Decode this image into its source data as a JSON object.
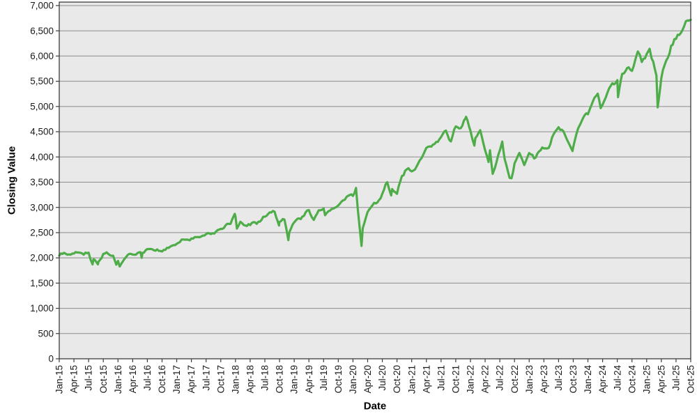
{
  "chart_data": {
    "type": "line",
    "title": "",
    "xlabel": "Date",
    "ylabel": "Closing Value",
    "legend": "none",
    "grid": "horizontal",
    "ylim": [
      0,
      7000
    ],
    "y_ticks": [
      0,
      500,
      1000,
      1500,
      2000,
      2500,
      3000,
      3500,
      4000,
      4500,
      5000,
      5500,
      6000,
      6500,
      7000
    ],
    "x_tick_labels": [
      "Jan-15",
      "Apr-15",
      "Jul-15",
      "Oct-15",
      "Jan-16",
      "Apr-16",
      "Jul-16",
      "Oct-16",
      "Jan-17",
      "Apr-17",
      "Jul-17",
      "Oct-17",
      "Jan-18",
      "Apr-18",
      "Jul-18",
      "Oct-18",
      "Jan-19",
      "Apr-19",
      "Jul-19",
      "Oct-19",
      "Jan-20",
      "Apr-20",
      "Jul-20",
      "Oct-20",
      "Jan-21",
      "Apr-21",
      "Jul-21",
      "Oct-21",
      "Jan-22",
      "Apr-22",
      "Jul-22",
      "Oct-22",
      "Jan-23",
      "Apr-23",
      "Jul-23",
      "Oct-23",
      "Jan-24",
      "Apr-24",
      "Jul-24",
      "Oct-24",
      "Jan-25",
      "Apr-25",
      "Jul-25",
      "Oct-25"
    ],
    "x_months_per_tick": 3,
    "colors": {
      "line": "#4ead49",
      "plot_bg": "#e9e9e9",
      "grid": "#8c8c8c",
      "axis": "#3c3c3c",
      "text": "#1a1a1a",
      "page_bg": "#ffffff"
    },
    "line_width": 3.2,
    "noise": {
      "amplitude_base": 14,
      "amplitude_fraction": 0.006,
      "steps_per_month": 3
    },
    "series": [
      {
        "name": "Closing Value",
        "points": [
          [
            0,
            2045
          ],
          [
            1,
            2100
          ],
          [
            2,
            2068
          ],
          [
            3,
            2086
          ],
          [
            4,
            2107
          ],
          [
            5,
            2063
          ],
          [
            6,
            2104
          ],
          [
            6.8,
            1871
          ],
          [
            7,
            1972
          ],
          [
            7.9,
            1872
          ],
          [
            8,
            1920
          ],
          [
            9,
            2079
          ],
          [
            10,
            2080
          ],
          [
            11,
            2044
          ],
          [
            11.65,
            1865
          ],
          [
            12,
            1940
          ],
          [
            12.35,
            1829
          ],
          [
            13,
            1932
          ],
          [
            14,
            2060
          ],
          [
            15,
            2065
          ],
          [
            16,
            2097
          ],
          [
            16.6,
            2113
          ],
          [
            16.85,
            2001
          ],
          [
            17,
            2099
          ],
          [
            18,
            2174
          ],
          [
            19,
            2171
          ],
          [
            20,
            2168
          ],
          [
            21,
            2126
          ],
          [
            22,
            2199
          ],
          [
            23,
            2239
          ],
          [
            24,
            2279
          ],
          [
            25,
            2364
          ],
          [
            26,
            2363
          ],
          [
            27,
            2384
          ],
          [
            28,
            2412
          ],
          [
            29,
            2423
          ],
          [
            30,
            2470
          ],
          [
            31,
            2472
          ],
          [
            32,
            2519
          ],
          [
            33,
            2575
          ],
          [
            34,
            2648
          ],
          [
            35,
            2674
          ],
          [
            35.85,
            2872
          ],
          [
            36,
            2824
          ],
          [
            36.3,
            2581
          ],
          [
            37,
            2714
          ],
          [
            38,
            2641
          ],
          [
            39,
            2648
          ],
          [
            40,
            2705
          ],
          [
            41,
            2718
          ],
          [
            42,
            2816
          ],
          [
            43,
            2902
          ],
          [
            43.65,
            2930
          ],
          [
            44,
            2914
          ],
          [
            44.9,
            2641
          ],
          [
            45,
            2712
          ],
          [
            46,
            2760
          ],
          [
            46.8,
            2351
          ],
          [
            47,
            2507
          ],
          [
            48,
            2704
          ],
          [
            49,
            2784
          ],
          [
            50,
            2834
          ],
          [
            51,
            2946
          ],
          [
            52,
            2752
          ],
          [
            53,
            2942
          ],
          [
            54,
            2980
          ],
          [
            54.3,
            2845
          ],
          [
            55,
            2926
          ],
          [
            56,
            2977
          ],
          [
            57,
            3038
          ],
          [
            58,
            3141
          ],
          [
            59,
            3231
          ],
          [
            60,
            3226
          ],
          [
            60.63,
            3386
          ],
          [
            61,
            2954
          ],
          [
            61.75,
            2237
          ],
          [
            62,
            2585
          ],
          [
            63,
            2912
          ],
          [
            64,
            3044
          ],
          [
            65,
            3100
          ],
          [
            66,
            3271
          ],
          [
            67,
            3500
          ],
          [
            67.8,
            3237
          ],
          [
            68,
            3363
          ],
          [
            69,
            3270
          ],
          [
            70,
            3622
          ],
          [
            71,
            3756
          ],
          [
            72,
            3714
          ],
          [
            73,
            3811
          ],
          [
            74,
            3973
          ],
          [
            75,
            4181
          ],
          [
            76,
            4204
          ],
          [
            77,
            4298
          ],
          [
            78,
            4395
          ],
          [
            79,
            4523
          ],
          [
            80,
            4308
          ],
          [
            81,
            4605
          ],
          [
            82,
            4567
          ],
          [
            83,
            4766
          ],
          [
            83.1,
            4797
          ],
          [
            84,
            4516
          ],
          [
            84.8,
            4225
          ],
          [
            85,
            4374
          ],
          [
            86,
            4530
          ],
          [
            87,
            4132
          ],
          [
            87.7,
            3900
          ],
          [
            88,
            4132
          ],
          [
            88.55,
            3666
          ],
          [
            89,
            3785
          ],
          [
            90,
            4130
          ],
          [
            90.5,
            4305
          ],
          [
            91,
            3955
          ],
          [
            92,
            3586
          ],
          [
            92.4,
            3577
          ],
          [
            93,
            3872
          ],
          [
            94,
            4080
          ],
          [
            95,
            3840
          ],
          [
            96,
            4077
          ],
          [
            97,
            3970
          ],
          [
            98,
            4109
          ],
          [
            99,
            4169
          ],
          [
            100,
            4180
          ],
          [
            101,
            4450
          ],
          [
            102,
            4589
          ],
          [
            103,
            4508
          ],
          [
            104,
            4288
          ],
          [
            104.85,
            4117
          ],
          [
            105,
            4194
          ],
          [
            106,
            4568
          ],
          [
            107,
            4770
          ],
          [
            108,
            4846
          ],
          [
            109,
            5096
          ],
          [
            110,
            5254
          ],
          [
            110.6,
            4967
          ],
          [
            111,
            5036
          ],
          [
            112,
            5278
          ],
          [
            113,
            5460
          ],
          [
            114,
            5522
          ],
          [
            114.15,
            5186
          ],
          [
            115,
            5648
          ],
          [
            116,
            5762
          ],
          [
            117,
            5705
          ],
          [
            118,
            6032
          ],
          [
            118.2,
            6090
          ],
          [
            119,
            5882
          ],
          [
            120,
            6041
          ],
          [
            120.6,
            6144
          ],
          [
            121,
            5955
          ],
          [
            122,
            5612
          ],
          [
            122.25,
            4983
          ],
          [
            123,
            5569
          ],
          [
            124,
            5912
          ],
          [
            125,
            6205
          ],
          [
            126,
            6339
          ],
          [
            127,
            6460
          ],
          [
            128,
            6688
          ],
          [
            129,
            6720
          ]
        ]
      }
    ]
  }
}
